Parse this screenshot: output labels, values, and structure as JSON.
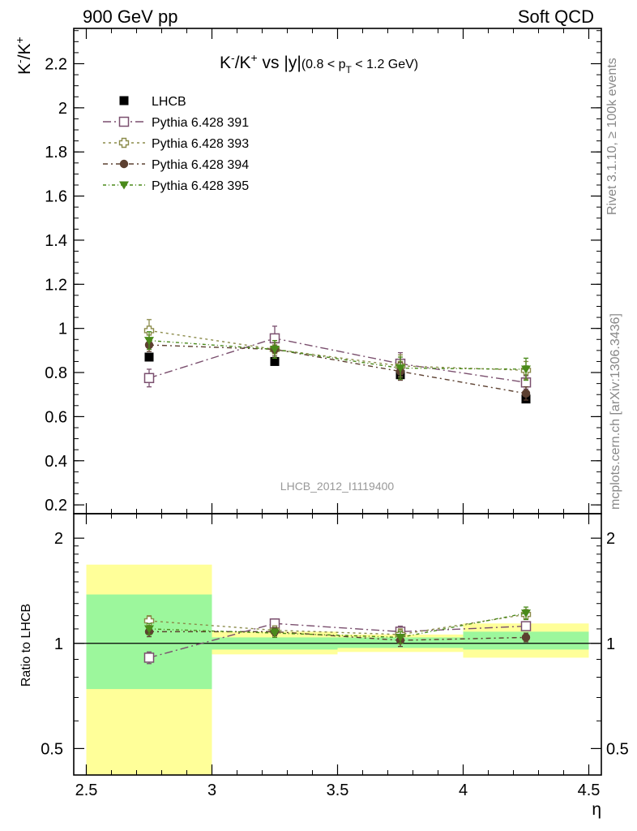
{
  "header": {
    "left": "900 GeV pp",
    "right": "Soft QCD"
  },
  "side_labels": {
    "rivet": "Rivet 3.1.10, ≥ 100k events",
    "mcplots": "mcplots.cern.ch [arXiv:1306.3436]"
  },
  "chart_data": [
    {
      "type": "scatter",
      "title": "K⁻/K⁺ vs |y|(0.8 < p_T < 1.2 GeV)",
      "title_parts": {
        "main_a": "K",
        "sup_a": "-",
        "main_b": "/K",
        "sup_b": "+",
        "main_c": " vs |y|",
        "cond_a": "(0.8 < p",
        "cond_sub": "T",
        "cond_b": " < 1.2 GeV)"
      },
      "ylabel": "K⁻/K⁺",
      "ylabel_parts": {
        "a": "K",
        "sup_a": "-",
        "b": "/K",
        "sup_b": "+"
      },
      "xlabel": "η",
      "watermark": "LHCB_2012_I1119400",
      "xlim": [
        2.45,
        4.55
      ],
      "ylim": [
        0.16,
        2.36
      ],
      "x_ticks": [
        2.5,
        3,
        3.5,
        4,
        4.5
      ],
      "x_tick_labels": [
        "2.5",
        "3",
        "3.5",
        "4",
        "4.5"
      ],
      "y_ticks": [
        0.2,
        0.4,
        0.6,
        0.8,
        1,
        1.2,
        1.4,
        1.6,
        1.8,
        2,
        2.2
      ],
      "y_tick_labels": [
        "0.2",
        "0.4",
        "0.6",
        "0.8",
        "1",
        "1.2",
        "1.4",
        "1.6",
        "1.8",
        "2",
        "2.2"
      ],
      "legend_position": "top-left",
      "data": {
        "name": "LHCB",
        "x": [
          2.75,
          3.25,
          3.75,
          4.25
        ],
        "xerr": [
          0.25,
          0.25,
          0.25,
          0.25
        ],
        "y": [
          0.87,
          0.85,
          0.79,
          0.68
        ],
        "yerr": [
          0.01,
          0.01,
          0.01,
          0.01
        ],
        "color": "#000000"
      },
      "series": [
        {
          "name": "Pythia 6.428 391",
          "x": [
            2.75,
            3.25,
            3.75,
            4.25
          ],
          "y": [
            0.775,
            0.955,
            0.84,
            0.755
          ],
          "yerr": [
            0.04,
            0.055,
            0.05,
            0.03
          ],
          "color": "#7a4f6e",
          "marker": "open-square",
          "dash": "10,4,2,4"
        },
        {
          "name": "Pythia 6.428 393",
          "x": [
            2.75,
            3.25,
            3.75,
            4.25
          ],
          "y": [
            0.99,
            0.905,
            0.83,
            0.81
          ],
          "yerr": [
            0.05,
            0.04,
            0.05,
            0.04
          ],
          "color": "#8b8b4a",
          "marker": "open-cross",
          "dash": "3,4"
        },
        {
          "name": "Pythia 6.428 394",
          "x": [
            2.75,
            3.25,
            3.75,
            4.25
          ],
          "y": [
            0.925,
            0.905,
            0.805,
            0.705
          ],
          "yerr": [
            0.03,
            0.03,
            0.04,
            0.03
          ],
          "color": "#5c4030",
          "marker": "circle",
          "dash": "6,4,2,4"
        },
        {
          "name": "Pythia 6.428 395",
          "x": [
            2.75,
            3.25,
            3.75,
            4.25
          ],
          "y": [
            0.945,
            0.905,
            0.82,
            0.815
          ],
          "yerr": [
            0.04,
            0.04,
            0.05,
            0.05
          ],
          "color": "#4a8a1a",
          "marker": "triangle-down",
          "dash": "4,3,1,3"
        }
      ]
    },
    {
      "type": "scatter",
      "title": "",
      "ylabel": "Ratio to LHCB",
      "xlabel": "η",
      "xlim": [
        2.45,
        4.55
      ],
      "ylim": [
        0.42,
        2.35
      ],
      "y_scale": "log",
      "y_ticks": [
        0.5,
        1,
        2
      ],
      "y_tick_labels": [
        "0.5",
        "1",
        "2"
      ],
      "reference_line": 1,
      "bands": [
        {
          "x_low": 2.5,
          "x_high": 3.0,
          "inner": [
            0.74,
            1.38
          ],
          "outer": [
            0.42,
            1.68
          ]
        },
        {
          "x_low": 3.0,
          "x_high": 3.5,
          "inner": [
            0.96,
            1.04
          ],
          "outer": [
            0.93,
            1.08
          ]
        },
        {
          "x_low": 3.5,
          "x_high": 4.0,
          "inner": [
            0.97,
            1.04
          ],
          "outer": [
            0.945,
            1.06
          ]
        },
        {
          "x_low": 4.0,
          "x_high": 4.5,
          "inner": [
            0.96,
            1.08
          ],
          "outer": [
            0.91,
            1.14
          ]
        }
      ],
      "band_colors": {
        "inner": "#9cf79c",
        "outer": "#ffff99"
      },
      "series": [
        {
          "name": "Pythia 6.428 391",
          "x": [
            2.75,
            3.25,
            3.75,
            4.25
          ],
          "y": [
            0.91,
            1.14,
            1.08,
            1.12
          ],
          "yerr": [
            0.035,
            0.035,
            0.04,
            0.03
          ]
        },
        {
          "name": "Pythia 6.428 393",
          "x": [
            2.75,
            3.25,
            3.75,
            4.25
          ],
          "y": [
            1.16,
            1.09,
            1.06,
            1.21
          ],
          "yerr": [
            0.04,
            0.03,
            0.04,
            0.04
          ]
        },
        {
          "name": "Pythia 6.428 394",
          "x": [
            2.75,
            3.25,
            3.75,
            4.25
          ],
          "y": [
            1.08,
            1.08,
            1.02,
            1.04
          ],
          "yerr": [
            0.035,
            0.03,
            0.04,
            0.03
          ]
        },
        {
          "name": "Pythia 6.428 395",
          "x": [
            2.75,
            3.25,
            3.75,
            4.25
          ],
          "y": [
            1.1,
            1.07,
            1.04,
            1.22
          ],
          "yerr": [
            0.04,
            0.03,
            0.04,
            0.05
          ]
        }
      ]
    }
  ]
}
